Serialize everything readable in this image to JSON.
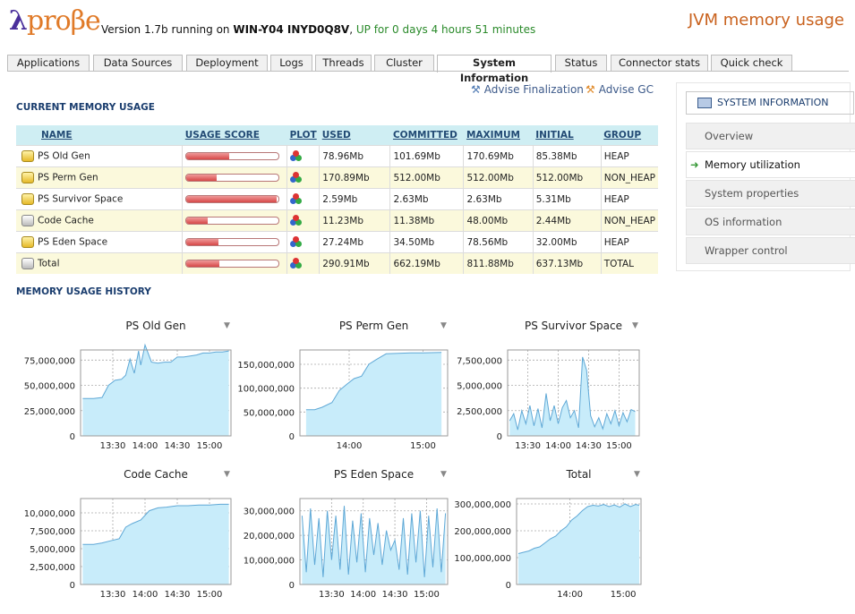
{
  "header": {
    "logo_lambda": "λ",
    "logo_text": "proβe",
    "version_prefix": "Version 1.7b running on ",
    "host": "WIN-Y04 INYD0Q8V",
    "comma": ",",
    "uptime": "UP for 0 days 4 hours 51 minutes",
    "page_heading": "JVM memory usage"
  },
  "tabs": [
    "Applications",
    "Data Sources",
    "Deployment",
    "Logs",
    "Threads",
    "Cluster",
    "System Information",
    "Status",
    "Connector stats",
    "Quick check"
  ],
  "active_tab": "System Information",
  "actions": {
    "advise_finalization": "Advise Finalization",
    "advise_gc": "Advise GC"
  },
  "current_usage": {
    "title": "CURRENT MEMORY USAGE",
    "columns": [
      "NAME",
      "USAGE SCORE",
      "PLOT",
      "USED",
      "COMMITTED",
      "MAXIMUM",
      "INITIAL",
      "GROUP"
    ],
    "rows": [
      {
        "name": "PS Old Gen",
        "icon": "yellow-cylinder-icon",
        "score": 0.46,
        "used": "78.96Mb",
        "committed": "101.69Mb",
        "maximum": "170.69Mb",
        "initial": "85.38Mb",
        "group": "HEAP"
      },
      {
        "name": "PS Perm Gen",
        "icon": "yellow-cylinder-icon",
        "score": 0.33,
        "used": "170.89Mb",
        "committed": "512.00Mb",
        "maximum": "512.00Mb",
        "initial": "512.00Mb",
        "group": "NON_HEAP"
      },
      {
        "name": "PS Survivor Space",
        "icon": "yellow-cylinder-icon",
        "score": 0.98,
        "used": "2.59Mb",
        "committed": "2.63Mb",
        "maximum": "2.63Mb",
        "initial": "5.31Mb",
        "group": "HEAP"
      },
      {
        "name": "Code Cache",
        "icon": "grey-cylinder-icon",
        "score": 0.23,
        "used": "11.23Mb",
        "committed": "11.38Mb",
        "maximum": "48.00Mb",
        "initial": "2.44Mb",
        "group": "NON_HEAP"
      },
      {
        "name": "PS Eden Space",
        "icon": "yellow-cylinder-icon",
        "score": 0.35,
        "used": "27.24Mb",
        "committed": "34.50Mb",
        "maximum": "78.56Mb",
        "initial": "32.00Mb",
        "group": "HEAP"
      },
      {
        "name": "Total",
        "icon": "grey-cylinder-icon",
        "score": 0.36,
        "used": "290.91Mb",
        "committed": "662.19Mb",
        "maximum": "811.88Mb",
        "initial": "637.13Mb",
        "group": "TOTAL"
      }
    ]
  },
  "history_title": "MEMORY USAGE HISTORY",
  "side_panel": {
    "header": "SYSTEM INFORMATION",
    "items": [
      "Overview",
      "Memory utilization",
      "System properties",
      "OS information",
      "Wrapper control"
    ],
    "active": "Memory utilization"
  },
  "colors": {
    "area_fill": "#c8ecfa",
    "area_line": "#5fa8d6",
    "heading": "#c9621e",
    "uptime": "#2a8a2a"
  },
  "chart_data": [
    {
      "type": "area",
      "title": "PS Old Gen",
      "ylim": [
        0,
        85000000
      ],
      "yticks": [
        0,
        25000000,
        50000000,
        75000000
      ],
      "ytick_labels": [
        "0",
        "25,000,000",
        "50,000,000",
        "75,000,000"
      ],
      "xlim": [
        780,
        920
      ],
      "xticks": [
        810,
        840,
        870,
        900
      ],
      "xtick_labels": [
        "13:30",
        "14:00",
        "14:30",
        "15:00"
      ],
      "x": [
        782,
        792,
        800,
        806,
        812,
        818,
        822,
        826,
        830,
        834,
        836,
        840,
        846,
        852,
        858,
        864,
        870,
        876,
        882,
        888,
        894,
        900,
        906,
        912,
        918
      ],
      "y": [
        37000000,
        37000000,
        38000000,
        50000000,
        55000000,
        56000000,
        60000000,
        76000000,
        62000000,
        84000000,
        70000000,
        90000000,
        73000000,
        72000000,
        73000000,
        73000000,
        78000000,
        78000000,
        79000000,
        80000000,
        82000000,
        82000000,
        83000000,
        83000000,
        84000000
      ]
    },
    {
      "type": "area",
      "title": "PS Perm Gen",
      "ylim": [
        0,
        180000000
      ],
      "yticks": [
        0,
        50000000,
        100000000,
        150000000
      ],
      "ytick_labels": [
        "0",
        "50,000,000",
        "100,000,000",
        "150,000,000"
      ],
      "xlim": [
        800,
        920
      ],
      "xticks": [
        840,
        900
      ],
      "xtick_labels": [
        "14:00",
        "15:00"
      ],
      "x": [
        805,
        812,
        818,
        826,
        832,
        838,
        844,
        850,
        856,
        862,
        870,
        880,
        890,
        900,
        915
      ],
      "y": [
        55000000,
        55000000,
        60000000,
        70000000,
        95000000,
        108000000,
        120000000,
        125000000,
        150000000,
        160000000,
        172000000,
        173000000,
        174000000,
        174000000,
        175000000
      ]
    },
    {
      "type": "area",
      "title": "PS Survivor Space",
      "ylim": [
        0,
        8500000
      ],
      "yticks": [
        0,
        2500000,
        5000000,
        7500000
      ],
      "ytick_labels": [
        "0",
        "2,500,000",
        "5,000,000",
        "7,500,000"
      ],
      "xlim": [
        790,
        920
      ],
      "xticks": [
        810,
        840,
        870,
        900
      ],
      "xtick_labels": [
        "13:30",
        "14:00",
        "14:30",
        "15:00"
      ],
      "x": [
        792,
        796,
        800,
        804,
        808,
        812,
        816,
        820,
        824,
        828,
        832,
        836,
        840,
        844,
        848,
        852,
        856,
        860,
        864,
        868,
        872,
        876,
        880,
        884,
        888,
        892,
        896,
        900,
        904,
        908,
        912,
        916
      ],
      "y": [
        1500000,
        2200000,
        600000,
        2500000,
        1200000,
        3000000,
        1000000,
        2700000,
        800000,
        4200000,
        1500000,
        3000000,
        1200000,
        2800000,
        3500000,
        1800000,
        2500000,
        800000,
        7800000,
        6500000,
        2000000,
        900000,
        1800000,
        700000,
        2200000,
        1200000,
        2500000,
        1000000,
        2300000,
        1400000,
        2600000,
        2400000
      ]
    },
    {
      "type": "area",
      "title": "Code Cache",
      "ylim": [
        0,
        12000000
      ],
      "yticks": [
        0,
        2500000,
        5000000,
        7500000,
        10000000
      ],
      "ytick_labels": [
        "0",
        "2,500,000",
        "5,000,000",
        "7,500,000",
        "10,000,000"
      ],
      "xlim": [
        780,
        920
      ],
      "xticks": [
        810,
        840,
        870,
        900
      ],
      "xtick_labels": [
        "13:30",
        "14:00",
        "14:30",
        "15:00"
      ],
      "x": [
        782,
        792,
        800,
        808,
        816,
        822,
        828,
        836,
        844,
        852,
        860,
        870,
        880,
        890,
        900,
        910,
        918
      ],
      "y": [
        5600000,
        5600000,
        5800000,
        6100000,
        6400000,
        8000000,
        8500000,
        9000000,
        10300000,
        10700000,
        10800000,
        11000000,
        11000000,
        11100000,
        11100000,
        11200000,
        11200000
      ]
    },
    {
      "type": "area",
      "title": "PS Eden Space",
      "ylim": [
        0,
        35000000
      ],
      "yticks": [
        0,
        10000000,
        20000000,
        30000000
      ],
      "ytick_labels": [
        "0",
        "10,000,000",
        "20,000,000",
        "30,000,000"
      ],
      "xlim": [
        780,
        920
      ],
      "xticks": [
        810,
        840,
        870,
        900
      ],
      "xtick_labels": [
        "13:30",
        "14:00",
        "14:30",
        "15:00"
      ],
      "x": [
        782,
        786,
        790,
        794,
        798,
        802,
        806,
        810,
        814,
        818,
        822,
        826,
        830,
        834,
        838,
        842,
        846,
        850,
        854,
        858,
        862,
        866,
        870,
        874,
        878,
        882,
        886,
        890,
        894,
        898,
        902,
        906,
        910,
        914,
        918
      ],
      "y": [
        28000000,
        5000000,
        31000000,
        8000000,
        27000000,
        3000000,
        30000000,
        10000000,
        28000000,
        6000000,
        32000000,
        4000000,
        26000000,
        9000000,
        29000000,
        5000000,
        27000000,
        12000000,
        25000000,
        8000000,
        22000000,
        14000000,
        18000000,
        6000000,
        27000000,
        4000000,
        29000000,
        9000000,
        30000000,
        3000000,
        28000000,
        7000000,
        31000000,
        5000000,
        29000000
      ]
    },
    {
      "type": "area",
      "title": "Total",
      "ylim": [
        0,
        320000000
      ],
      "yticks": [
        0,
        100000000,
        200000000,
        300000000
      ],
      "ytick_labels": [
        "0",
        "100,000,000",
        "200,000,000",
        "300,000,000"
      ],
      "xlim": [
        780,
        920
      ],
      "xticks": [
        840,
        900
      ],
      "xtick_labels": [
        "14:00",
        "15:00"
      ],
      "x": [
        782,
        788,
        794,
        800,
        806,
        812,
        818,
        824,
        830,
        836,
        842,
        848,
        854,
        860,
        866,
        872,
        878,
        884,
        890,
        896,
        902,
        908,
        914,
        918
      ],
      "y": [
        115000000,
        120000000,
        125000000,
        135000000,
        140000000,
        155000000,
        170000000,
        180000000,
        200000000,
        215000000,
        240000000,
        255000000,
        275000000,
        290000000,
        295000000,
        292000000,
        298000000,
        290000000,
        296000000,
        288000000,
        300000000,
        290000000,
        298000000,
        295000000
      ]
    }
  ]
}
